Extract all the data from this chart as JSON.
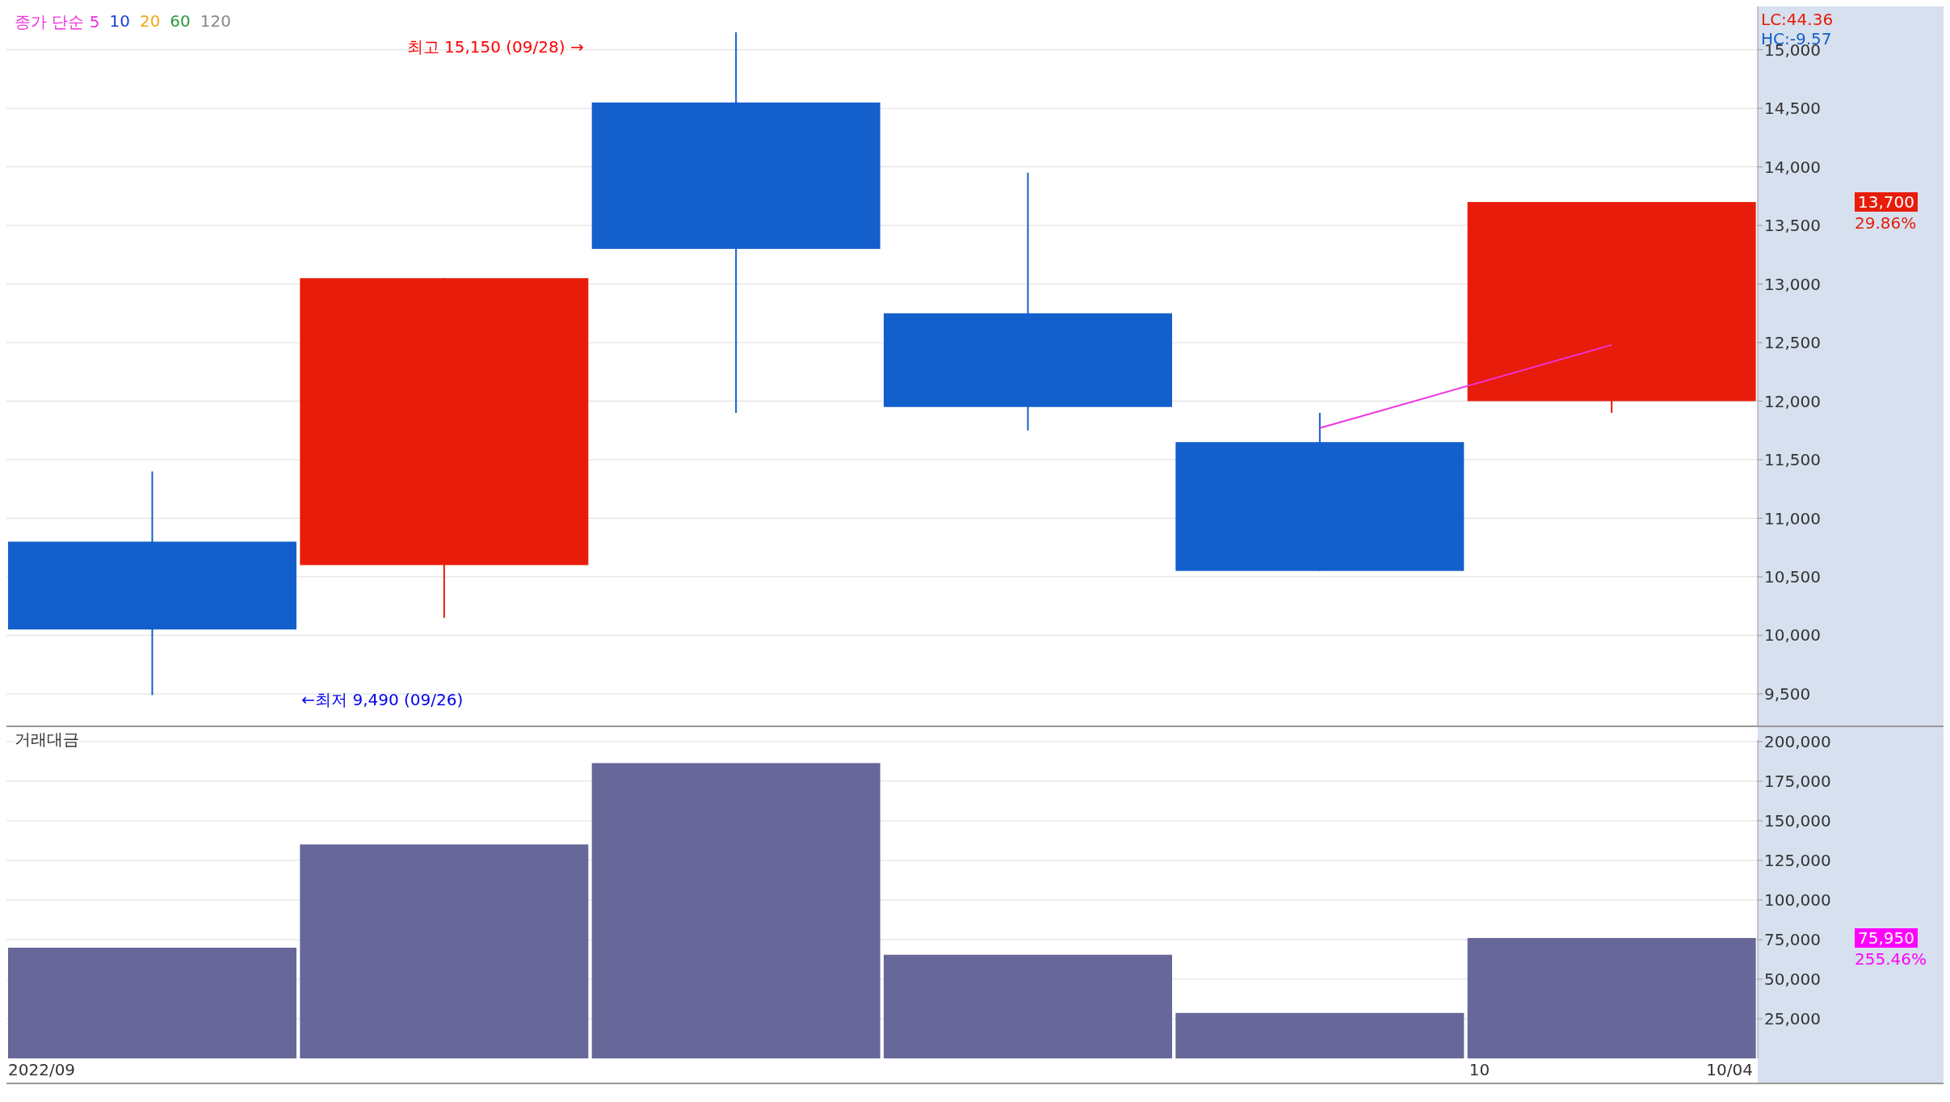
{
  "chart_data": [
    {
      "type": "candlestick",
      "categories": [
        null,
        null,
        null,
        null,
        null,
        null
      ],
      "ohlc": [
        [
          10800,
          11400,
          9490,
          10050
        ],
        [
          10600,
          13050,
          10150,
          13050
        ],
        [
          14550,
          15150,
          11900,
          13300
        ],
        [
          12750,
          13950,
          11750,
          11950
        ],
        [
          11650,
          11900,
          10550,
          10550
        ],
        [
          12000,
          13700,
          11900,
          13700
        ]
      ],
      "colors": [
        "#135fcc",
        "#e81c0a",
        "#135fcc",
        "#135fcc",
        "#135fcc",
        "#e81c0a"
      ],
      "series": [
        {
          "name": "종가 단순 5",
          "type": "line",
          "color": "#ee33dd",
          "values": [
            null,
            null,
            null,
            null,
            11770,
            12480
          ]
        },
        {
          "name": "10",
          "type": "line",
          "color": "#1a3fd0",
          "values": [
            null,
            null,
            null,
            null,
            null,
            null
          ]
        },
        {
          "name": "20",
          "type": "line",
          "color": "#f0a818",
          "values": [
            null,
            null,
            null,
            null,
            null,
            null
          ]
        },
        {
          "name": "60",
          "type": "line",
          "color": "#2a9a3a",
          "values": [
            null,
            null,
            null,
            null,
            null,
            null
          ]
        },
        {
          "name": "120",
          "type": "line",
          "color": "#888888",
          "values": [
            null,
            null,
            null,
            null,
            null,
            null
          ]
        }
      ],
      "ylim": [
        9230,
        15370
      ],
      "yticks": [
        {
          "value": 9500,
          "label": "9,500"
        },
        {
          "value": 10000,
          "label": "10,000"
        },
        {
          "value": 10500,
          "label": "10,500"
        },
        {
          "value": 11000,
          "label": "11,000"
        },
        {
          "value": 11500,
          "label": "11,500"
        },
        {
          "value": 12000,
          "label": "12,000"
        },
        {
          "value": 12500,
          "label": "12,500"
        },
        {
          "value": 13000,
          "label": "13,000"
        },
        {
          "value": 13500,
          "label": "13,500"
        },
        {
          "value": 14000,
          "label": "14,000"
        },
        {
          "value": 14500,
          "label": "14,500"
        },
        {
          "value": 15000,
          "label": "15,000"
        }
      ],
      "grid": "y",
      "legend": "top left",
      "tick_labels": "y",
      "annotations": [
        "최고 15,150 (09/28) →",
        "←최저 9,490 (09/26)",
        "LC:44.36",
        "HC:-9.57",
        "13,700",
        "29.86%"
      ]
    },
    {
      "type": "bar",
      "title": "거래대금",
      "categories": [
        null,
        null,
        null,
        null,
        null,
        null
      ],
      "values": [
        69900,
        135000,
        186500,
        65400,
        28700,
        75950
      ],
      "color": "#67679a",
      "ylim": [
        0,
        201000
      ],
      "yticks": [
        {
          "value": 25000,
          "label": "25,000"
        },
        {
          "value": 50000,
          "label": "50,000"
        },
        {
          "value": 75000,
          "label": "75,000"
        },
        {
          "value": 100000,
          "label": "100,000"
        },
        {
          "value": 125000,
          "label": "125,000"
        },
        {
          "value": 150000,
          "label": "150,000"
        },
        {
          "value": 175000,
          "label": "175,000"
        },
        {
          "value": 200000,
          "label": "200,000"
        }
      ],
      "grid": "y",
      "tick_labels": "y",
      "annotations": [
        "75,950",
        "255.46%",
        "2022/09",
        "10",
        "10/04"
      ]
    }
  ]
}
